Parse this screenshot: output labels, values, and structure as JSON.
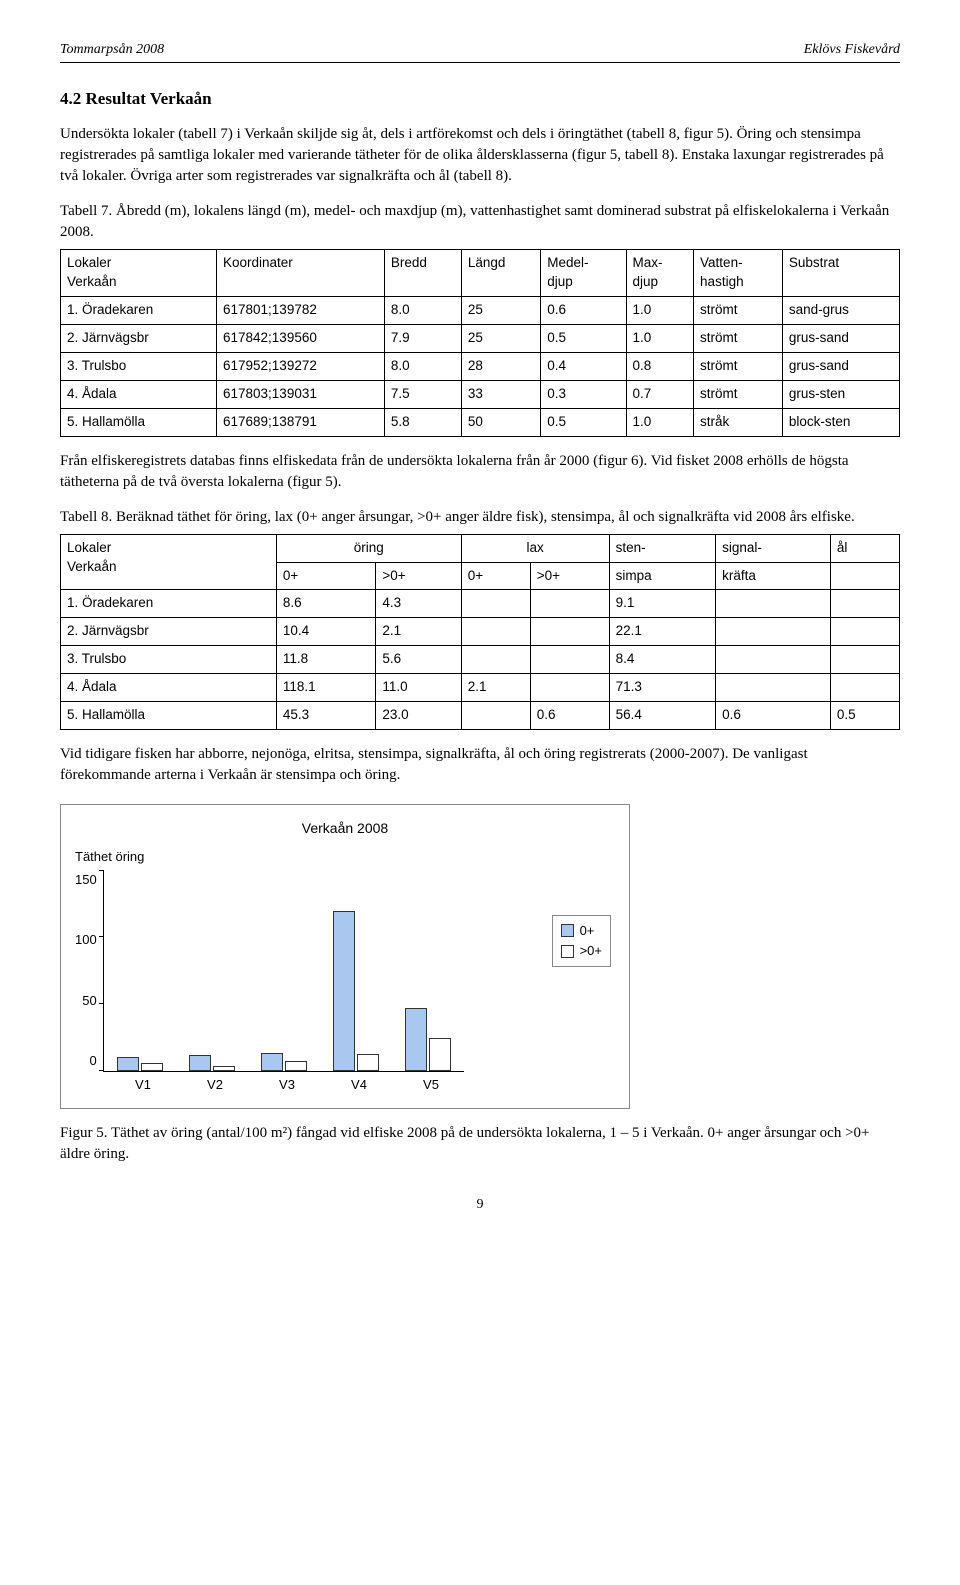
{
  "header": {
    "left": "Tommarpsån 2008",
    "right": "Eklövs Fiskevård"
  },
  "section": {
    "title": "4.2  Resultat Verkaån"
  },
  "para1": "Undersökta lokaler (tabell 7) i Verkaån skiljde sig åt, dels i artförekomst och dels i öringtäthet (tabell 8, figur 5). Öring och stensimpa registrerades på samtliga lokaler med varierande tätheter för de olika åldersklasserna (figur 5, tabell 8). Enstaka laxungar registrerades på två lokaler. Övriga arter som registrerades var signalkräfta och ål (tabell 8).",
  "t7caption": "Tabell 7. Åbredd (m), lokalens längd (m), medel- och maxdjup (m), vattenhastighet samt dominerad substrat på elfiskelokalerna i Verkaån 2008.",
  "table7": {
    "headers": {
      "c0a": "Lokaler",
      "c0b": "Verkaån",
      "c1": "Koordinater",
      "c2": "Bredd",
      "c3": "Längd",
      "c4a": "Medel-",
      "c4b": "djup",
      "c5a": "Max-",
      "c5b": "djup",
      "c6a": "Vatten-",
      "c6b": "hastigh",
      "c7": "Substrat"
    },
    "rows": [
      {
        "n": "1. Öradekaren",
        "k": "617801;139782",
        "b": "8.0",
        "l": "25",
        "md": "0.6",
        "mx": "1.0",
        "vh": "strömt",
        "s": "sand-grus"
      },
      {
        "n": "2. Järnvägsbr",
        "k": "617842;139560",
        "b": "7.9",
        "l": "25",
        "md": "0.5",
        "mx": "1.0",
        "vh": "strömt",
        "s": "grus-sand"
      },
      {
        "n": "3. Trulsbo",
        "k": "617952;139272",
        "b": "8.0",
        "l": "28",
        "md": "0.4",
        "mx": "0.8",
        "vh": "strömt",
        "s": "grus-sand"
      },
      {
        "n": "4. Ådala",
        "k": "617803;139031",
        "b": "7.5",
        "l": "33",
        "md": "0.3",
        "mx": "0.7",
        "vh": "strömt",
        "s": "grus-sten"
      },
      {
        "n": "5. Hallamölla",
        "k": "617689;138791",
        "b": "5.8",
        "l": "50",
        "md": "0.5",
        "mx": "1.0",
        "vh": "stråk",
        "s": "block-sten"
      }
    ]
  },
  "para2": "Från elfiskeregistrets databas finns elfiskedata från de undersökta lokalerna från år 2000 (figur 6). Vid fisket 2008 erhölls de högsta tätheterna på de två översta lokalerna (figur 5).",
  "t8caption": "Tabell 8. Beräknad täthet för öring, lax (0+ anger årsungar, >0+ anger äldre fisk), stensimpa, ål och signalkräfta vid 2008 års elfiske.",
  "table8": {
    "headers": {
      "c0a": "Lokaler",
      "c0b": "Verkaån",
      "c1": "öring",
      "c1a": "0+",
      "c1b": ">0+",
      "c2": "lax",
      "c2a": "0+",
      "c2b": ">0+",
      "c3a": "sten-",
      "c3b": "simpa",
      "c4a": "signal-",
      "c4b": "kräfta",
      "c5": "ål"
    },
    "rows": [
      {
        "n": "1. Öradekaren",
        "o0": "8.6",
        "o1": "4.3",
        "l0": "",
        "l1": "",
        "ss": "9.1",
        "sk": "",
        "al": ""
      },
      {
        "n": "2. Järnvägsbr",
        "o0": "10.4",
        "o1": "2.1",
        "l0": "",
        "l1": "",
        "ss": "22.1",
        "sk": "",
        "al": ""
      },
      {
        "n": "3. Trulsbo",
        "o0": "11.8",
        "o1": "5.6",
        "l0": "",
        "l1": "",
        "ss": "8.4",
        "sk": "",
        "al": ""
      },
      {
        "n": "4. Ådala",
        "o0": "118.1",
        "o1": "11.0",
        "l0": "2.1",
        "l1": "",
        "ss": "71.3",
        "sk": "",
        "al": ""
      },
      {
        "n": "5. Hallamölla",
        "o0": "45.3",
        "o1": "23.0",
        "l0": "",
        "l1": "0.6",
        "ss": "56.4",
        "sk": "0.6",
        "al": "0.5"
      }
    ]
  },
  "para3": "Vid tidigare fisken har abborre, nejonöga, elritsa, stensimpa, signalkräfta, ål och öring registrerats (2000-2007). De vanligast förekommande arterna i Verkaån är stensimpa och öring.",
  "chart": {
    "type": "bar",
    "title": "Verkaån 2008",
    "ylabel": "Täthet öring",
    "categories": [
      "V1",
      "V2",
      "V3",
      "V4",
      "V5"
    ],
    "series": [
      {
        "name": "0+",
        "color": "#a8c8f0",
        "values": [
          8.6,
          10.4,
          11.8,
          118.1,
          45.3
        ]
      },
      {
        "name": ">0+",
        "color": "#ffffff",
        "values": [
          4.3,
          2.1,
          5.6,
          11.0,
          23.0
        ]
      }
    ],
    "ylim": [
      0,
      150
    ],
    "yticks": [
      0,
      50,
      100,
      150
    ],
    "border_color": "#333333",
    "background": "#ffffff"
  },
  "fig5caption": "Figur 5. Täthet av öring (antal/100 m²) fångad vid elfiske 2008 på de undersökta lokalerna, 1 – 5 i Verkaån. 0+ anger årsungar och >0+ äldre öring.",
  "pagenum": "9"
}
